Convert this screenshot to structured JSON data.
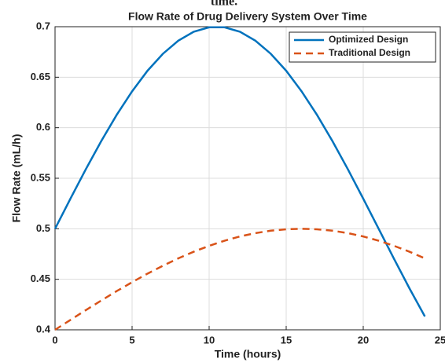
{
  "chart_data": {
    "type": "line",
    "header": "time.",
    "title": "Flow Rate of Drug Delivery System Over Time",
    "xlabel": "Time (hours)",
    "ylabel": "Flow Rate (mL/h)",
    "x": [
      0,
      1,
      2,
      3,
      4,
      5,
      6,
      7,
      8,
      9,
      10,
      11,
      12,
      13,
      14,
      15,
      16,
      17,
      18,
      19,
      20,
      21,
      22,
      23,
      24
    ],
    "series": [
      {
        "name": "Optimized Design",
        "color": "#0072bd",
        "dash": "solid",
        "values": [
          0.5,
          0.5298,
          0.559,
          0.5868,
          0.6127,
          0.636,
          0.6564,
          0.6732,
          0.6862,
          0.695,
          0.6994,
          0.6994,
          0.695,
          0.6862,
          0.6732,
          0.6564,
          0.636,
          0.6127,
          0.5868,
          0.559,
          0.5298,
          0.5,
          0.4702,
          0.441,
          0.4132
        ]
      },
      {
        "name": "Traditional Design",
        "color": "#d95319",
        "dash": "dashed",
        "values": [
          0.4,
          0.4098,
          0.4195,
          0.429,
          0.4383,
          0.4471,
          0.4556,
          0.4634,
          0.4707,
          0.4773,
          0.4831,
          0.4882,
          0.4924,
          0.4957,
          0.4981,
          0.4995,
          0.5,
          0.4995,
          0.4981,
          0.4957,
          0.4924,
          0.4882,
          0.4831,
          0.4773,
          0.4707
        ]
      }
    ],
    "xlim": [
      0,
      25
    ],
    "xticks": [
      0,
      5,
      10,
      15,
      20,
      25
    ],
    "ylim": [
      0.4,
      0.7
    ],
    "yticks": [
      0.4,
      0.45,
      0.5,
      0.55,
      0.6,
      0.65,
      0.7
    ],
    "grid": true,
    "legend": "northeast"
  }
}
